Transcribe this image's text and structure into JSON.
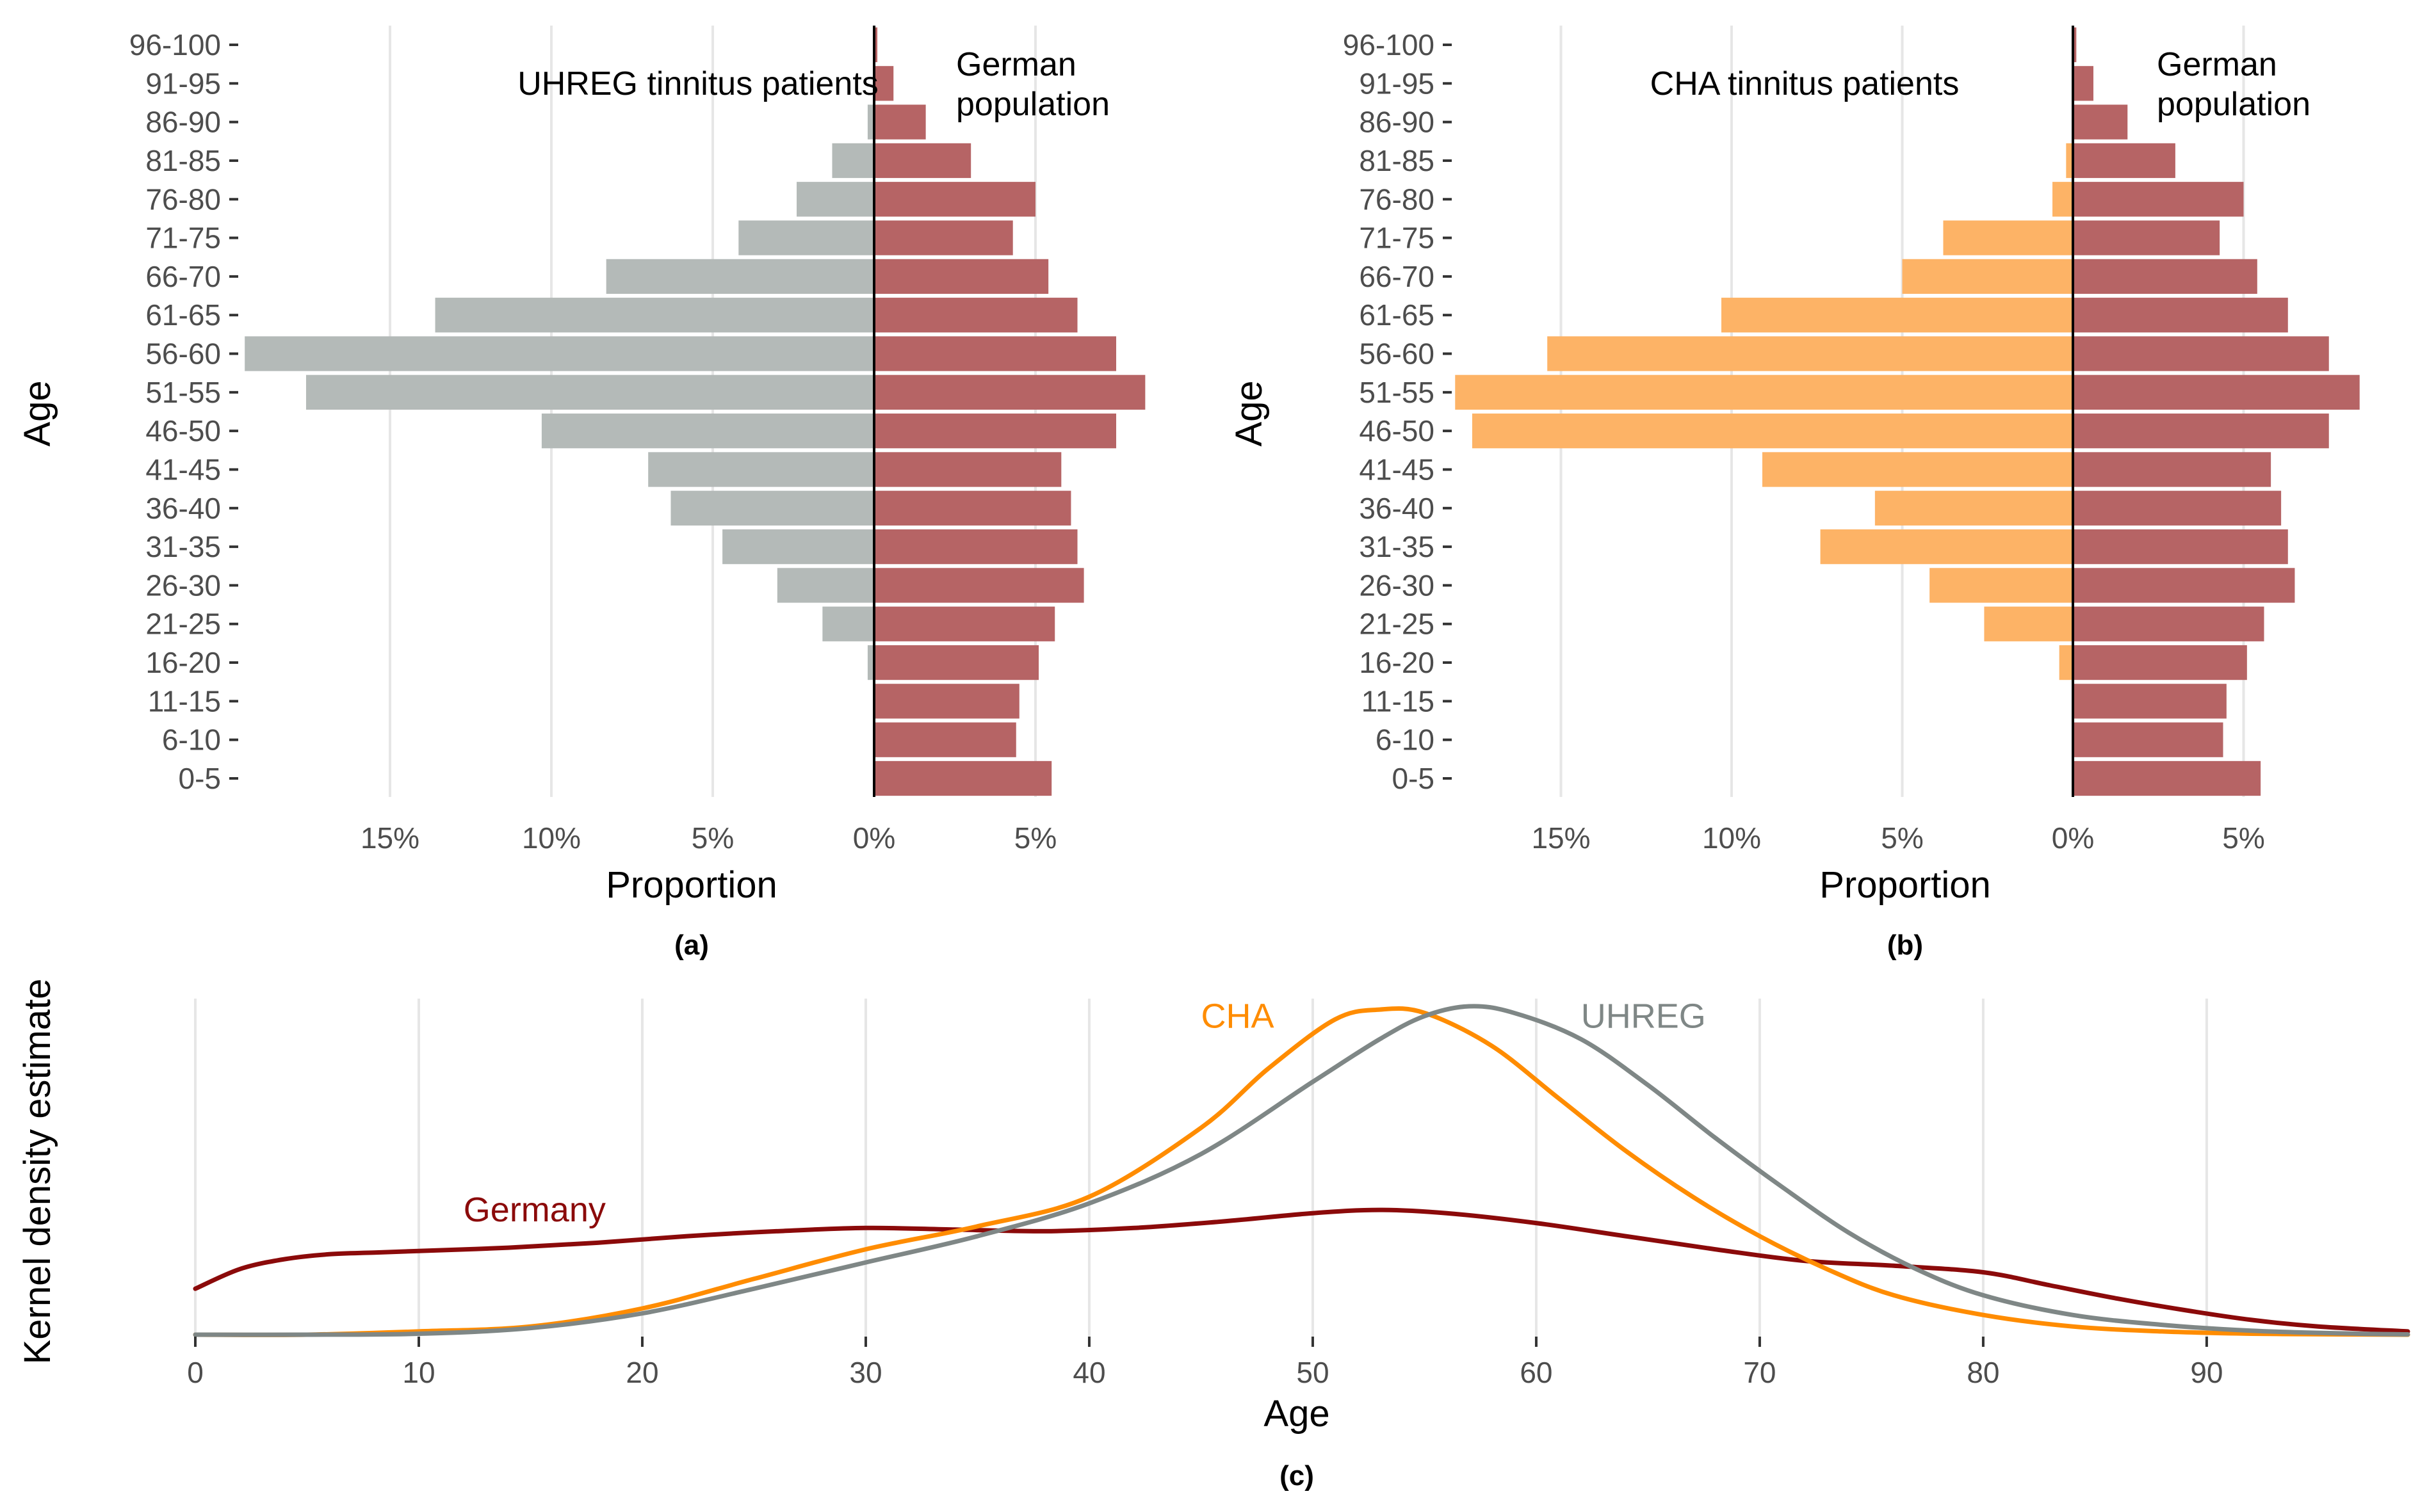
{
  "chart_data": [
    {
      "type": "bar",
      "orientation": "horizontal-pyramid",
      "caption": "(a)",
      "left_series_label": "UHREG tinnitus patients",
      "right_series_label": "German population",
      "ylabel": "Age",
      "xlabel": "Proportion",
      "x_ticks": [
        "15%",
        "10%",
        "5%",
        "0%",
        "5%"
      ],
      "xlim": [
        -19.5,
        8.8
      ],
      "grid": true,
      "categories": [
        "0-5",
        "6-10",
        "11-15",
        "16-20",
        "21-25",
        "26-30",
        "31-35",
        "36-40",
        "41-45",
        "46-50",
        "51-55",
        "56-60",
        "61-65",
        "66-70",
        "71-75",
        "76-80",
        "81-85",
        "86-90",
        "91-95",
        "96-100"
      ],
      "series": [
        {
          "name": "UHREG tinnitus patients",
          "side": "left",
          "color": "#b4bab8",
          "values": [
            0,
            0,
            0,
            0.2,
            1.6,
            3.0,
            4.7,
            6.3,
            7.0,
            10.3,
            17.6,
            19.5,
            13.6,
            8.3,
            4.2,
            2.4,
            1.3,
            0.2,
            0,
            0
          ]
        },
        {
          "name": "German population",
          "side": "right",
          "color": "#b66465",
          "values": [
            5.5,
            4.4,
            4.5,
            5.1,
            5.6,
            6.5,
            6.3,
            6.1,
            5.8,
            7.5,
            8.4,
            7.5,
            6.3,
            5.4,
            4.3,
            5.0,
            3.0,
            1.6,
            0.6,
            0.1
          ]
        }
      ]
    },
    {
      "type": "bar",
      "orientation": "horizontal-pyramid",
      "caption": "(b)",
      "left_series_label": "CHA tinnitus patients",
      "right_series_label": "German population",
      "ylabel": "Age",
      "xlabel": "Proportion",
      "x_ticks": [
        "15%",
        "10%",
        "5%",
        "0%",
        "5%"
      ],
      "xlim": [
        -18.2,
        8.8
      ],
      "grid": true,
      "categories": [
        "0-5",
        "6-10",
        "11-15",
        "16-20",
        "21-25",
        "26-30",
        "31-35",
        "36-40",
        "41-45",
        "46-50",
        "51-55",
        "56-60",
        "61-65",
        "66-70",
        "71-75",
        "76-80",
        "81-85",
        "86-90",
        "91-95",
        "96-100"
      ],
      "series": [
        {
          "name": "CHA tinnitus patients",
          "side": "left",
          "color": "#fdb366",
          "values": [
            0,
            0,
            0,
            0.4,
            2.6,
            4.2,
            7.4,
            5.8,
            9.1,
            17.6,
            18.1,
            15.4,
            10.3,
            5.0,
            3.8,
            0.6,
            0.2,
            0,
            0,
            0
          ]
        },
        {
          "name": "German population",
          "side": "right",
          "color": "#b66465",
          "values": [
            5.5,
            4.4,
            4.5,
            5.1,
            5.6,
            6.5,
            6.3,
            6.1,
            5.8,
            7.5,
            8.4,
            7.5,
            6.3,
            5.4,
            4.3,
            5.0,
            3.0,
            1.6,
            0.6,
            0.1
          ]
        }
      ]
    },
    {
      "type": "line",
      "caption": "(c)",
      "xlabel": "Age",
      "ylabel": "Kernel density estimate",
      "x_ticks": [
        "0",
        "10",
        "20",
        "30",
        "40",
        "50",
        "60",
        "70",
        "80",
        "90"
      ],
      "xlim": [
        0,
        99
      ],
      "ylim": [
        0,
        1
      ],
      "grid": true,
      "series": [
        {
          "name": "Germany",
          "color": "#8b0a0a",
          "label_x": 12,
          "label_y": 0.38,
          "x": [
            0,
            2,
            4,
            6,
            8,
            10,
            14,
            18,
            22,
            26,
            30,
            34,
            38,
            42,
            46,
            50,
            53,
            56,
            60,
            64,
            68,
            72,
            76,
            80,
            83,
            86,
            89,
            92,
            95,
            99
          ],
          "y": [
            0.14,
            0.2,
            0.23,
            0.245,
            0.25,
            0.255,
            0.265,
            0.28,
            0.3,
            0.315,
            0.325,
            0.32,
            0.315,
            0.325,
            0.345,
            0.37,
            0.38,
            0.37,
            0.34,
            0.3,
            0.26,
            0.225,
            0.21,
            0.19,
            0.15,
            0.11,
            0.075,
            0.045,
            0.025,
            0.01
          ]
        },
        {
          "name": "CHA",
          "color": "#ff8c00",
          "label_x": 45,
          "label_y": 0.97,
          "x": [
            0,
            5,
            10,
            15,
            20,
            25,
            30,
            35,
            40,
            45,
            48,
            51,
            53,
            55,
            58,
            61,
            64,
            67,
            70,
            73,
            76,
            80,
            84,
            88,
            92,
            96,
            99
          ],
          "y": [
            0,
            0,
            0.01,
            0.025,
            0.08,
            0.17,
            0.26,
            0.33,
            0.42,
            0.63,
            0.81,
            0.96,
            0.99,
            0.98,
            0.88,
            0.72,
            0.56,
            0.42,
            0.3,
            0.2,
            0.12,
            0.06,
            0.025,
            0.01,
            0.003,
            0.001,
            0
          ]
        },
        {
          "name": "UHREG",
          "color": "#7f8786",
          "label_x": 62,
          "label_y": 0.97,
          "x": [
            0,
            5,
            10,
            15,
            20,
            25,
            30,
            35,
            40,
            45,
            50,
            53,
            55,
            57,
            59,
            62,
            65,
            68,
            71,
            74,
            77,
            80,
            84,
            88,
            92,
            96,
            99
          ],
          "y": [
            0,
            0,
            0.003,
            0.02,
            0.065,
            0.14,
            0.22,
            0.3,
            0.4,
            0.55,
            0.77,
            0.9,
            0.97,
            1.0,
            0.98,
            0.9,
            0.76,
            0.6,
            0.45,
            0.31,
            0.2,
            0.12,
            0.06,
            0.03,
            0.012,
            0.004,
            0.001
          ]
        }
      ]
    }
  ]
}
